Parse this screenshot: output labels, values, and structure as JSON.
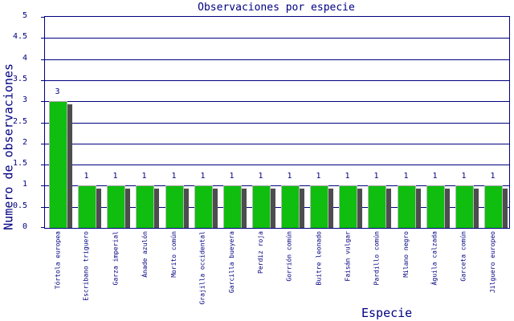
{
  "chart_data": {
    "type": "bar",
    "title": "Observaciones por especie",
    "xlabel": "Especie",
    "ylabel": "Numero de observaciones",
    "ylim": [
      0,
      5
    ],
    "ytick_step": 0.5,
    "yticks": [
      "0",
      "0.5",
      "1",
      "1.5",
      "2",
      "2.5",
      "3",
      "3.5",
      "4",
      "4.5",
      "5"
    ],
    "grid": true,
    "legend": "none",
    "categories": [
      "Tórtola europea",
      "Escribano triguero",
      "Garza imperial",
      "Ánade azulón",
      "Morito común",
      "Grajilla occidental",
      "Garcilla bueyera",
      "Perdiz roja",
      "Gorrión común",
      "Buitre leonado",
      "Faisán vulgar",
      "Pardillo común",
      "Milano negro",
      "Águila calzada",
      "Garceta común",
      "Jilguero europeo"
    ],
    "values": [
      3,
      1,
      1,
      1,
      1,
      1,
      1,
      1,
      1,
      1,
      1,
      1,
      1,
      1,
      1,
      1
    ],
    "value_labels": [
      "3",
      "1",
      "1",
      "1",
      "1",
      "1",
      "1",
      "1",
      "1",
      "1",
      "1",
      "1",
      "1",
      "1",
      "1",
      "1"
    ],
    "colors": {
      "axis": "#000080",
      "text": "#000080",
      "bar": "#0fbe0f",
      "bar_shadow": "#4d4d4d",
      "background": "#ffffff"
    }
  }
}
